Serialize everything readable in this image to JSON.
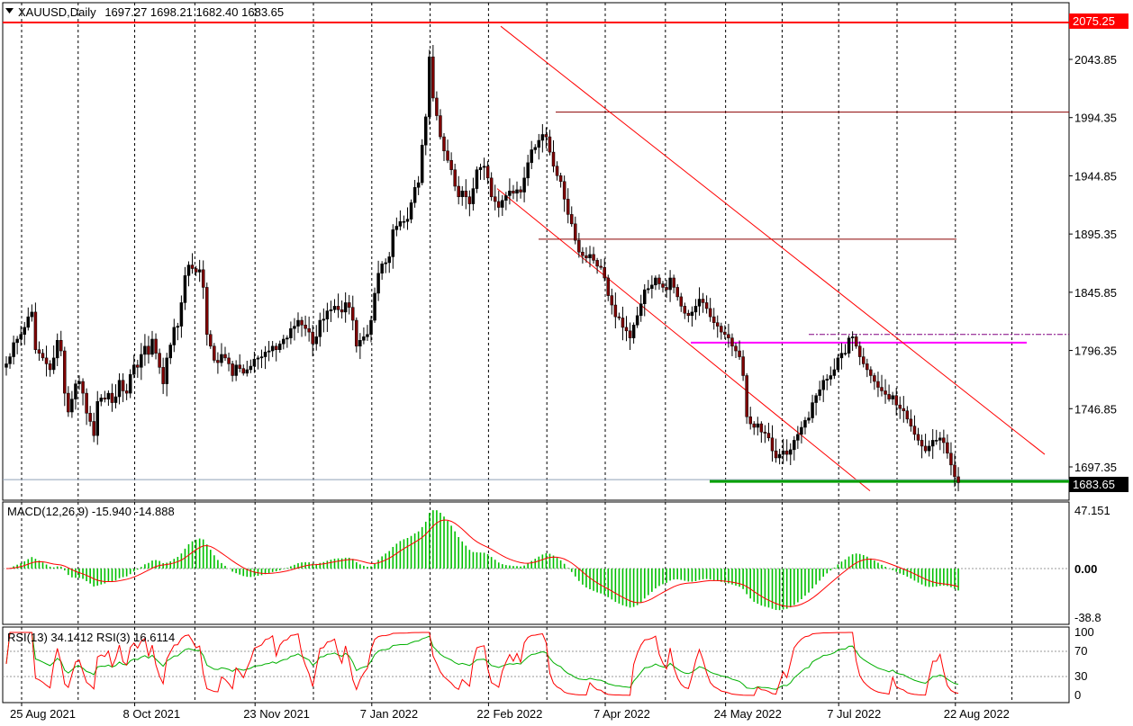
{
  "chart_data": {
    "type": "candlestick",
    "symbol_header": "XAUUSD,Daily",
    "ohlc_header": "1697.27 1698.21 1682.40 1683.65",
    "price_axis": {
      "ticks": [
        "2043.85",
        "1994.35",
        "1944.85",
        "1895.35",
        "1845.85",
        "1796.35",
        "1746.85",
        "1697.35"
      ],
      "tick_values": [
        2043.85,
        1994.35,
        1944.85,
        1895.35,
        1845.85,
        1796.35,
        1746.85,
        1697.35
      ],
      "ylim": [
        1680,
        2082
      ],
      "resistance_label": "2075.25",
      "resistance_value": 2075.25,
      "current_label": "1683.65",
      "current_value": 1683.65
    },
    "time_axis": {
      "labels": [
        "25 Aug 2021",
        "8 Oct 2021",
        "23 Nov 2021",
        "7 Jan 2022",
        "22 Feb 2022",
        "7 Apr 2022",
        "24 May 2022",
        "7 Jul 2022",
        "22 Aug 2022"
      ],
      "label_bar_index": [
        0,
        31,
        64,
        96,
        128,
        160,
        193,
        224,
        256
      ],
      "bar_count": 275
    },
    "closes": [
      1785,
      1791,
      1803,
      1806,
      1810,
      1816,
      1825,
      1829,
      1797,
      1794,
      1790,
      1785,
      1780,
      1790,
      1805,
      1796,
      1760,
      1744,
      1755,
      1768,
      1770,
      1760,
      1743,
      1736,
      1724,
      1753,
      1756,
      1755,
      1760,
      1752,
      1757,
      1771,
      1762,
      1760,
      1776,
      1784,
      1782,
      1793,
      1800,
      1793,
      1806,
      1794,
      1782,
      1768,
      1790,
      1801,
      1816,
      1817,
      1837,
      1860,
      1869,
      1866,
      1863,
      1865,
      1850,
      1810,
      1800,
      1788,
      1786,
      1793,
      1790,
      1785,
      1775,
      1784,
      1781,
      1777,
      1780,
      1783,
      1789,
      1790,
      1791,
      1795,
      1796,
      1800,
      1797,
      1802,
      1806,
      1807,
      1815,
      1817,
      1822,
      1818,
      1815,
      1812,
      1802,
      1808,
      1822,
      1823,
      1830,
      1831,
      1834,
      1831,
      1829,
      1837,
      1833,
      1822,
      1800,
      1805,
      1808,
      1810,
      1822,
      1845,
      1862,
      1870,
      1871,
      1876,
      1899,
      1902,
      1906,
      1906,
      1908,
      1922,
      1935,
      1939,
      1971,
      1995,
      2046,
      2011,
      1996,
      1978,
      1966,
      1958,
      1950,
      1936,
      1927,
      1932,
      1927,
      1921,
      1934,
      1950,
      1952,
      1953,
      1943,
      1927,
      1923,
      1918,
      1924,
      1928,
      1932,
      1930,
      1933,
      1931,
      1943,
      1956,
      1967,
      1969,
      1975,
      1980,
      1978,
      1965,
      1953,
      1945,
      1940,
      1925,
      1912,
      1904,
      1890,
      1880,
      1877,
      1875,
      1878,
      1873,
      1868,
      1867,
      1858,
      1843,
      1835,
      1825,
      1824,
      1816,
      1813,
      1807,
      1818,
      1826,
      1836,
      1848,
      1849,
      1852,
      1858,
      1853,
      1850,
      1848,
      1858,
      1850,
      1842,
      1834,
      1828,
      1826,
      1829,
      1834,
      1840,
      1837,
      1832,
      1825,
      1820,
      1817,
      1812,
      1810,
      1807,
      1800,
      1796,
      1791,
      1775,
      1740,
      1734,
      1731,
      1734,
      1727,
      1726,
      1722,
      1711,
      1705,
      1708,
      1711,
      1708,
      1712,
      1720,
      1725,
      1731,
      1737,
      1739,
      1752,
      1758,
      1763,
      1771,
      1772,
      1775,
      1780,
      1790,
      1794,
      1794,
      1807,
      1808,
      1800,
      1791,
      1785,
      1780,
      1775,
      1770,
      1765,
      1762,
      1759,
      1755,
      1758,
      1750,
      1747,
      1745,
      1738,
      1732,
      1725,
      1720,
      1715,
      1711,
      1715,
      1720,
      1720,
      1722,
      1718,
      1709,
      1699,
      1689,
      1684
    ]
  },
  "macd": {
    "label": "MACD(12,26,9) -15.940 -14.888",
    "ticks": [
      "47.151",
      "0.00",
      "-38.8"
    ],
    "tick_values": [
      47.151,
      0,
      -38.8
    ]
  },
  "rsi": {
    "label": "RSI(13) 34.1412  RSI(3) 16.6114",
    "ticks": [
      "100",
      "70",
      "30",
      "0"
    ],
    "tick_values": [
      100,
      70,
      30,
      0
    ]
  },
  "colors": {
    "bull": "#000000",
    "bear": "#000000",
    "bull_fill": "#000000",
    "bear_fill": "#7f0000",
    "channel": "#ff0000",
    "resistance": "#ff0000",
    "support": "#00a000",
    "magenta": "#ff00ff",
    "darkred": "#8b0000",
    "macd_hist": "#00c000",
    "macd_signal": "#ff0000",
    "rsi13": "#00b000",
    "rsi3": "#ff0000",
    "grid": "#000000"
  }
}
